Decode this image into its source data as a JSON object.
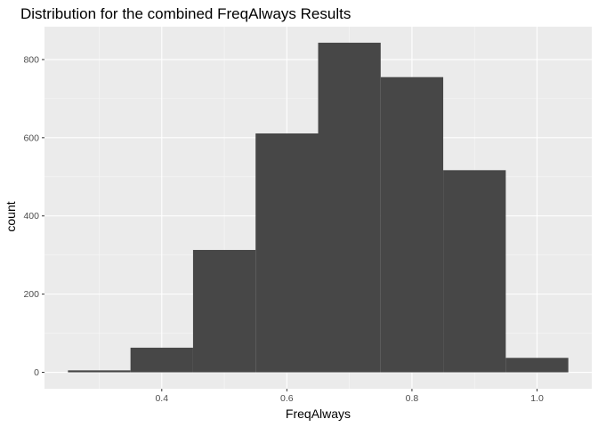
{
  "chart_data": {
    "type": "bar",
    "title": "Distribution for the combined FreqAlways Results",
    "xlabel": "FreqAlways",
    "ylabel": "count",
    "xlim": [
      0.2125,
      1.0875
    ],
    "ylim": [
      -42,
      884
    ],
    "x_ticks": [
      0.4,
      0.6,
      0.8,
      1.0
    ],
    "x_tick_labels": [
      "0.4",
      "0.6",
      "0.8",
      "1.0"
    ],
    "x_minor_ticks": [
      0.3,
      0.5,
      0.7,
      0.9
    ],
    "y_ticks": [
      0,
      200,
      400,
      600,
      800
    ],
    "y_tick_labels": [
      "0",
      "200",
      "400",
      "600",
      "800"
    ],
    "y_minor_ticks": [
      100,
      300,
      500,
      700
    ],
    "bins": [
      {
        "x_min": 0.25,
        "x_max": 0.35,
        "count": 5
      },
      {
        "x_min": 0.35,
        "x_max": 0.45,
        "count": 63
      },
      {
        "x_min": 0.45,
        "x_max": 0.55,
        "count": 313
      },
      {
        "x_min": 0.55,
        "x_max": 0.65,
        "count": 611
      },
      {
        "x_min": 0.65,
        "x_max": 0.75,
        "count": 843
      },
      {
        "x_min": 0.75,
        "x_max": 0.85,
        "count": 755
      },
      {
        "x_min": 0.85,
        "x_max": 0.95,
        "count": 517
      },
      {
        "x_min": 0.95,
        "x_max": 1.05,
        "count": 37
      }
    ],
    "grid": true,
    "legend": "none",
    "colors": {
      "panel_background": "#ebebeb",
      "grid_major": "#ffffff",
      "grid_minor": "#f7f7f7",
      "bar_fill": "#474747",
      "tick_color": "#333333"
    }
  }
}
